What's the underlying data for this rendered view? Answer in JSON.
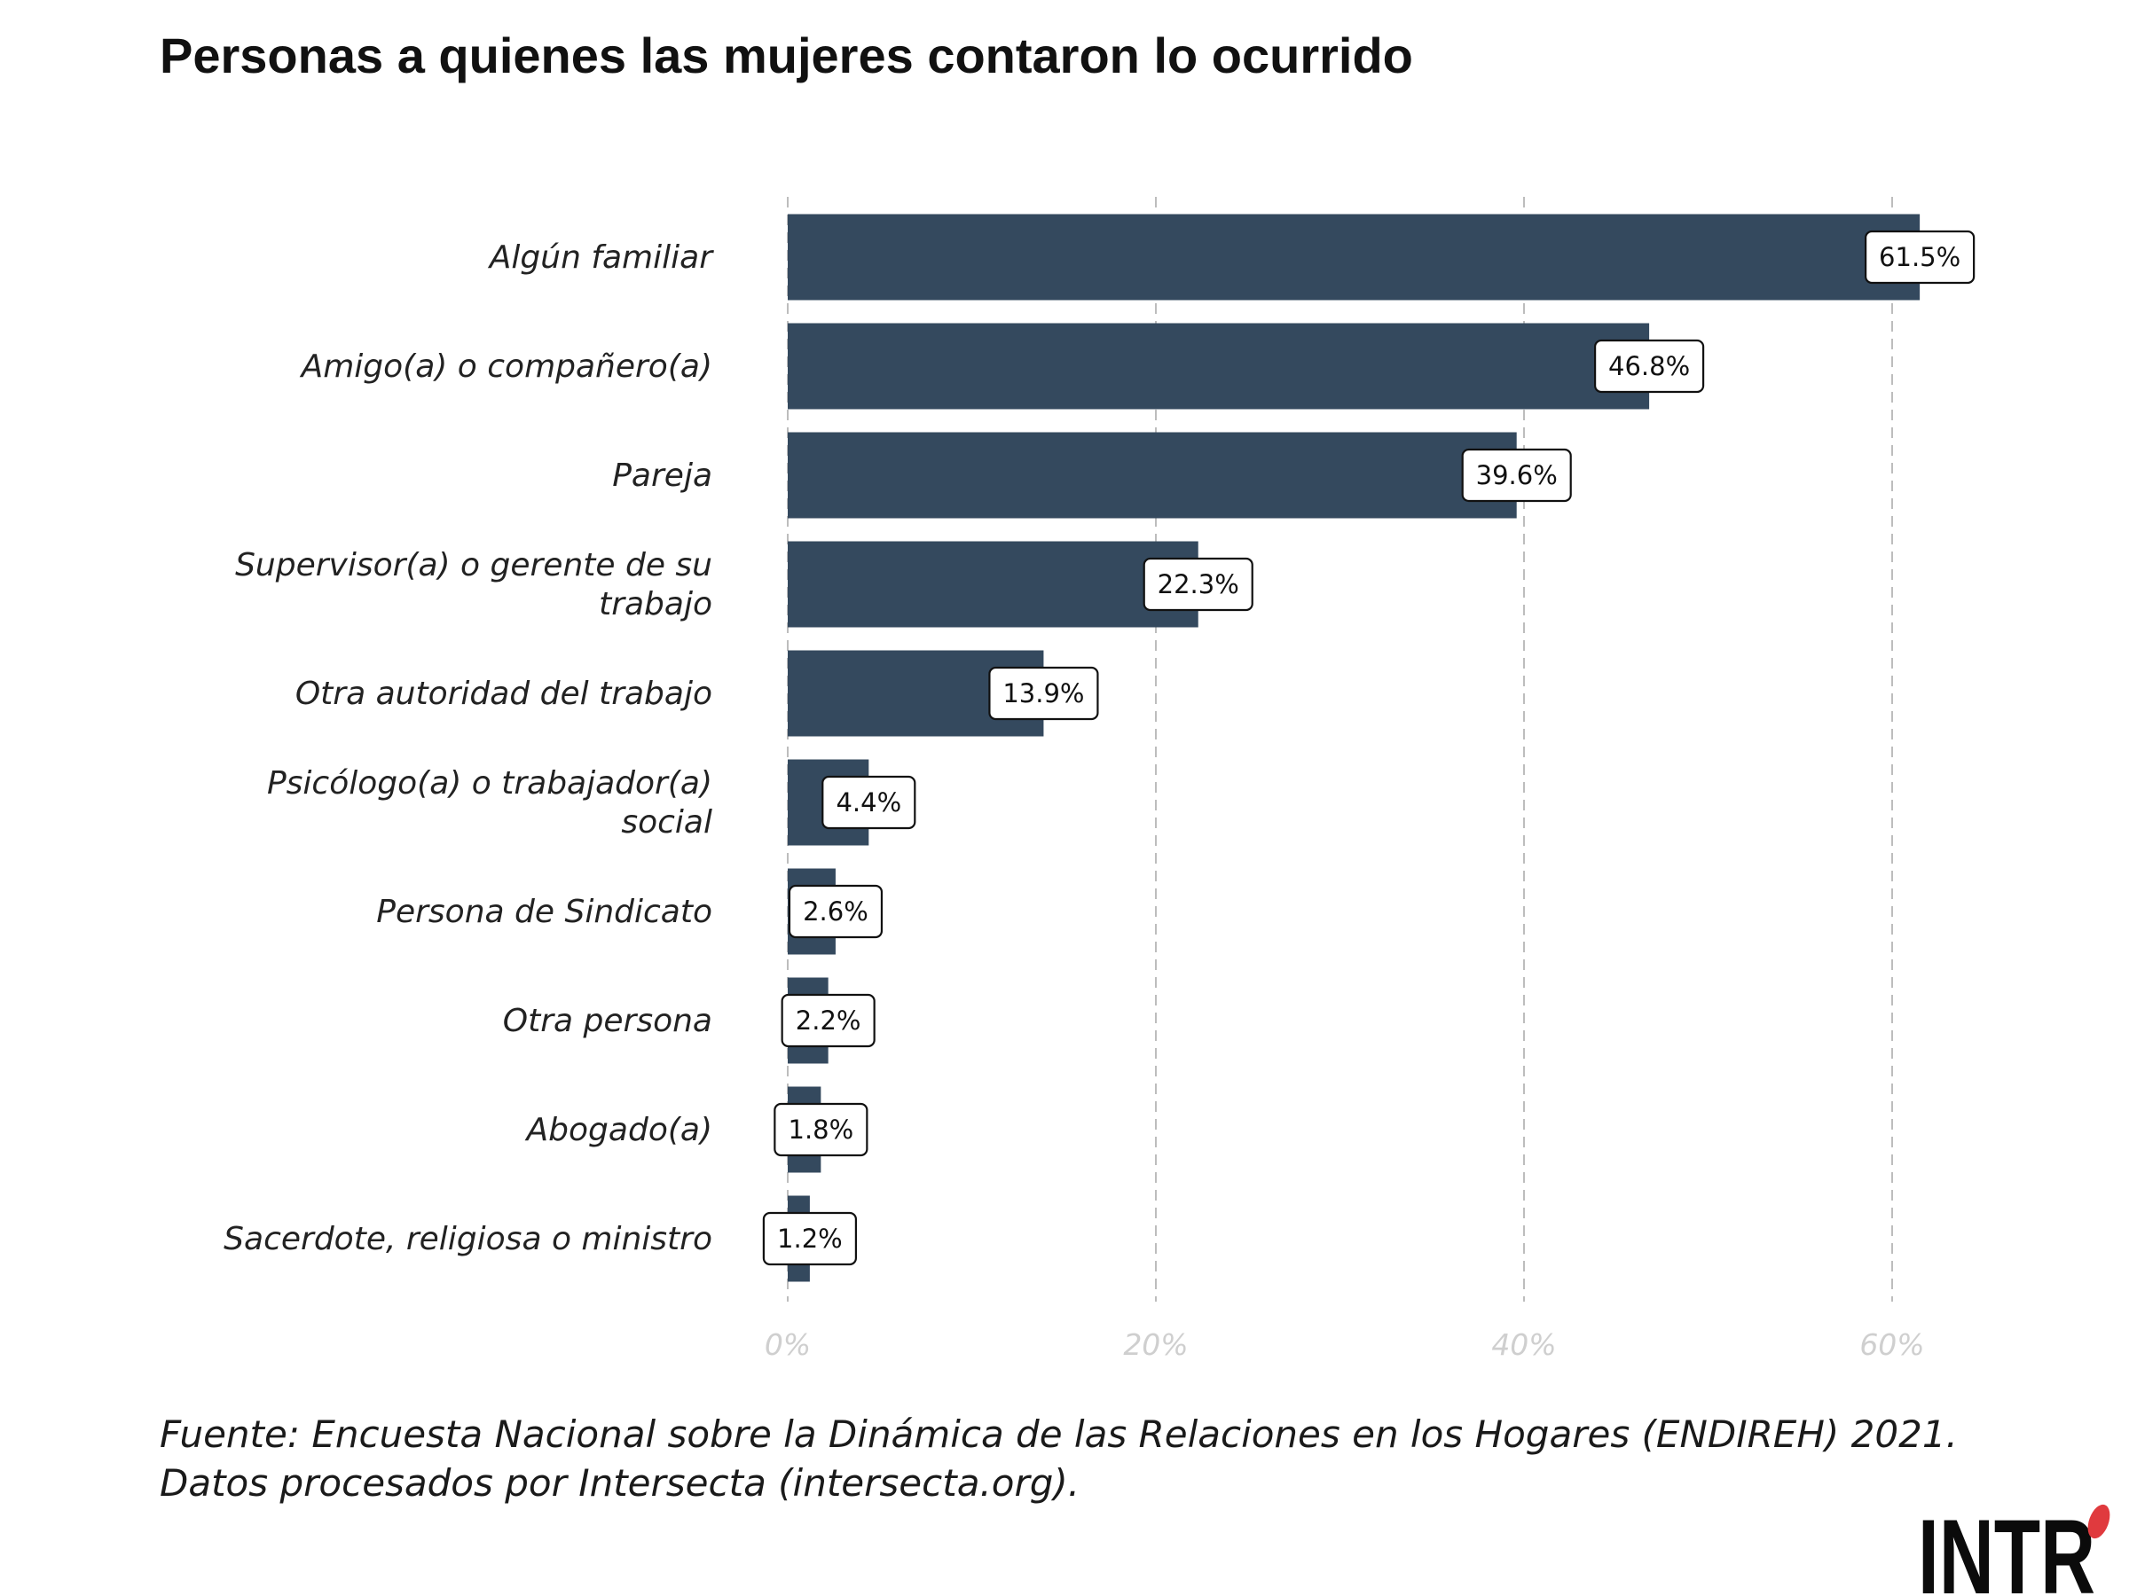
{
  "chart_data": {
    "type": "bar",
    "orientation": "horizontal",
    "title": "Personas a quienes las mujeres contaron lo ocurrido",
    "categories": [
      [
        "Algún familiar"
      ],
      [
        "Amigo(a) o compañero(a)"
      ],
      [
        "Pareja"
      ],
      [
        "Supervisor(a) o gerente de su",
        "trabajo"
      ],
      [
        "Otra autoridad del trabajo"
      ],
      [
        "Psicólogo(a) o trabajador(a)",
        "social"
      ],
      [
        "Persona de Sindicato"
      ],
      [
        "Otra persona"
      ],
      [
        "Abogado(a)"
      ],
      [
        "Sacerdote, religiosa o ministro"
      ]
    ],
    "values": [
      61.5,
      46.8,
      39.6,
      22.3,
      13.9,
      4.4,
      2.6,
      2.2,
      1.8,
      1.2
    ],
    "value_labels": [
      "61.5%",
      "46.8%",
      "39.6%",
      "22.3%",
      "13.9%",
      "4.4%",
      "2.6%",
      "2.2%",
      "1.8%",
      "1.2%"
    ],
    "xticks": [
      0,
      20,
      40,
      60
    ],
    "xtick_labels": [
      "0%",
      "20%",
      "40%",
      "60%"
    ],
    "xlim": [
      0,
      65
    ],
    "grid": "vertical dashed",
    "bar_color": "#34495e"
  },
  "source": {
    "line1": "Fuente: Encuesta Nacional sobre la Dinámica de las Relaciones en los Hogares (ENDIREH) 2021.",
    "line2": "Datos procesados por Intersecta (intersecta.org)."
  },
  "logo": {
    "text": "INTR",
    "dot_color": "#e03a3e"
  }
}
